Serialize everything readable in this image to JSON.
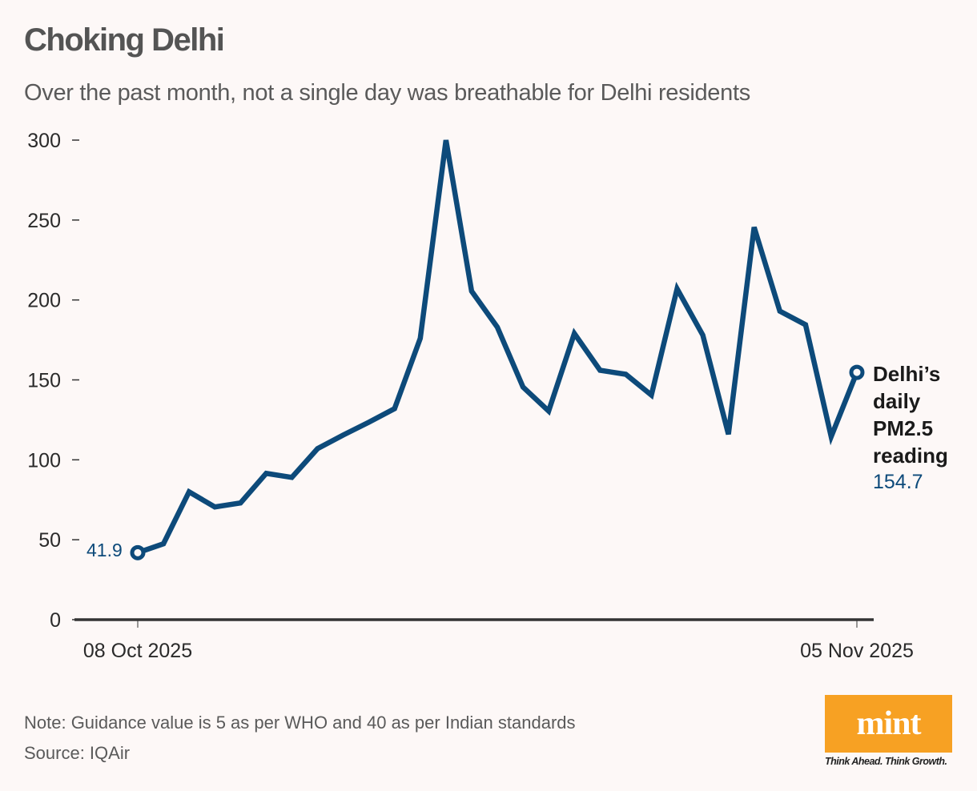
{
  "header": {
    "title": "Choking Delhi",
    "subtitle": "Over the past month, not a single day was breathable for Delhi residents"
  },
  "chart_data": {
    "type": "line",
    "title": "Choking Delhi",
    "subtitle": "Over the past month, not a single day was breathable for Delhi residents",
    "xlabel": "",
    "ylabel": "",
    "x_start": "08 Oct 2025",
    "x_end": "05 Nov 2025",
    "x_tick_labels": [
      "08 Oct 2025",
      "05 Nov 2025"
    ],
    "y_ticks": [
      0,
      50,
      100,
      150,
      200,
      250,
      300
    ],
    "ylim": [
      0,
      300
    ],
    "grid": false,
    "series": [
      {
        "name": "Delhi's daily PM2.5 reading",
        "color": "#0d4a7a",
        "values": [
          41.9,
          47.5,
          80,
          70.5,
          73,
          91.5,
          89,
          107,
          115.5,
          123.5,
          132,
          176,
          300,
          205.5,
          183,
          145.5,
          130.5,
          179,
          156,
          153.5,
          140.5,
          207,
          178,
          116,
          245.5,
          193,
          184.5,
          114.5,
          154.7
        ]
      }
    ],
    "annotations": {
      "start_value": "41.9",
      "end_label": "Delhi’s daily PM2.5 reading",
      "end_value": "154.7"
    }
  },
  "footer": {
    "note": "Note: Guidance value is 5 as per WHO and 40 as per Indian standards",
    "source": "Source: IQAir",
    "logo_text": "mint",
    "tagline": "Think Ahead. Think Growth."
  }
}
